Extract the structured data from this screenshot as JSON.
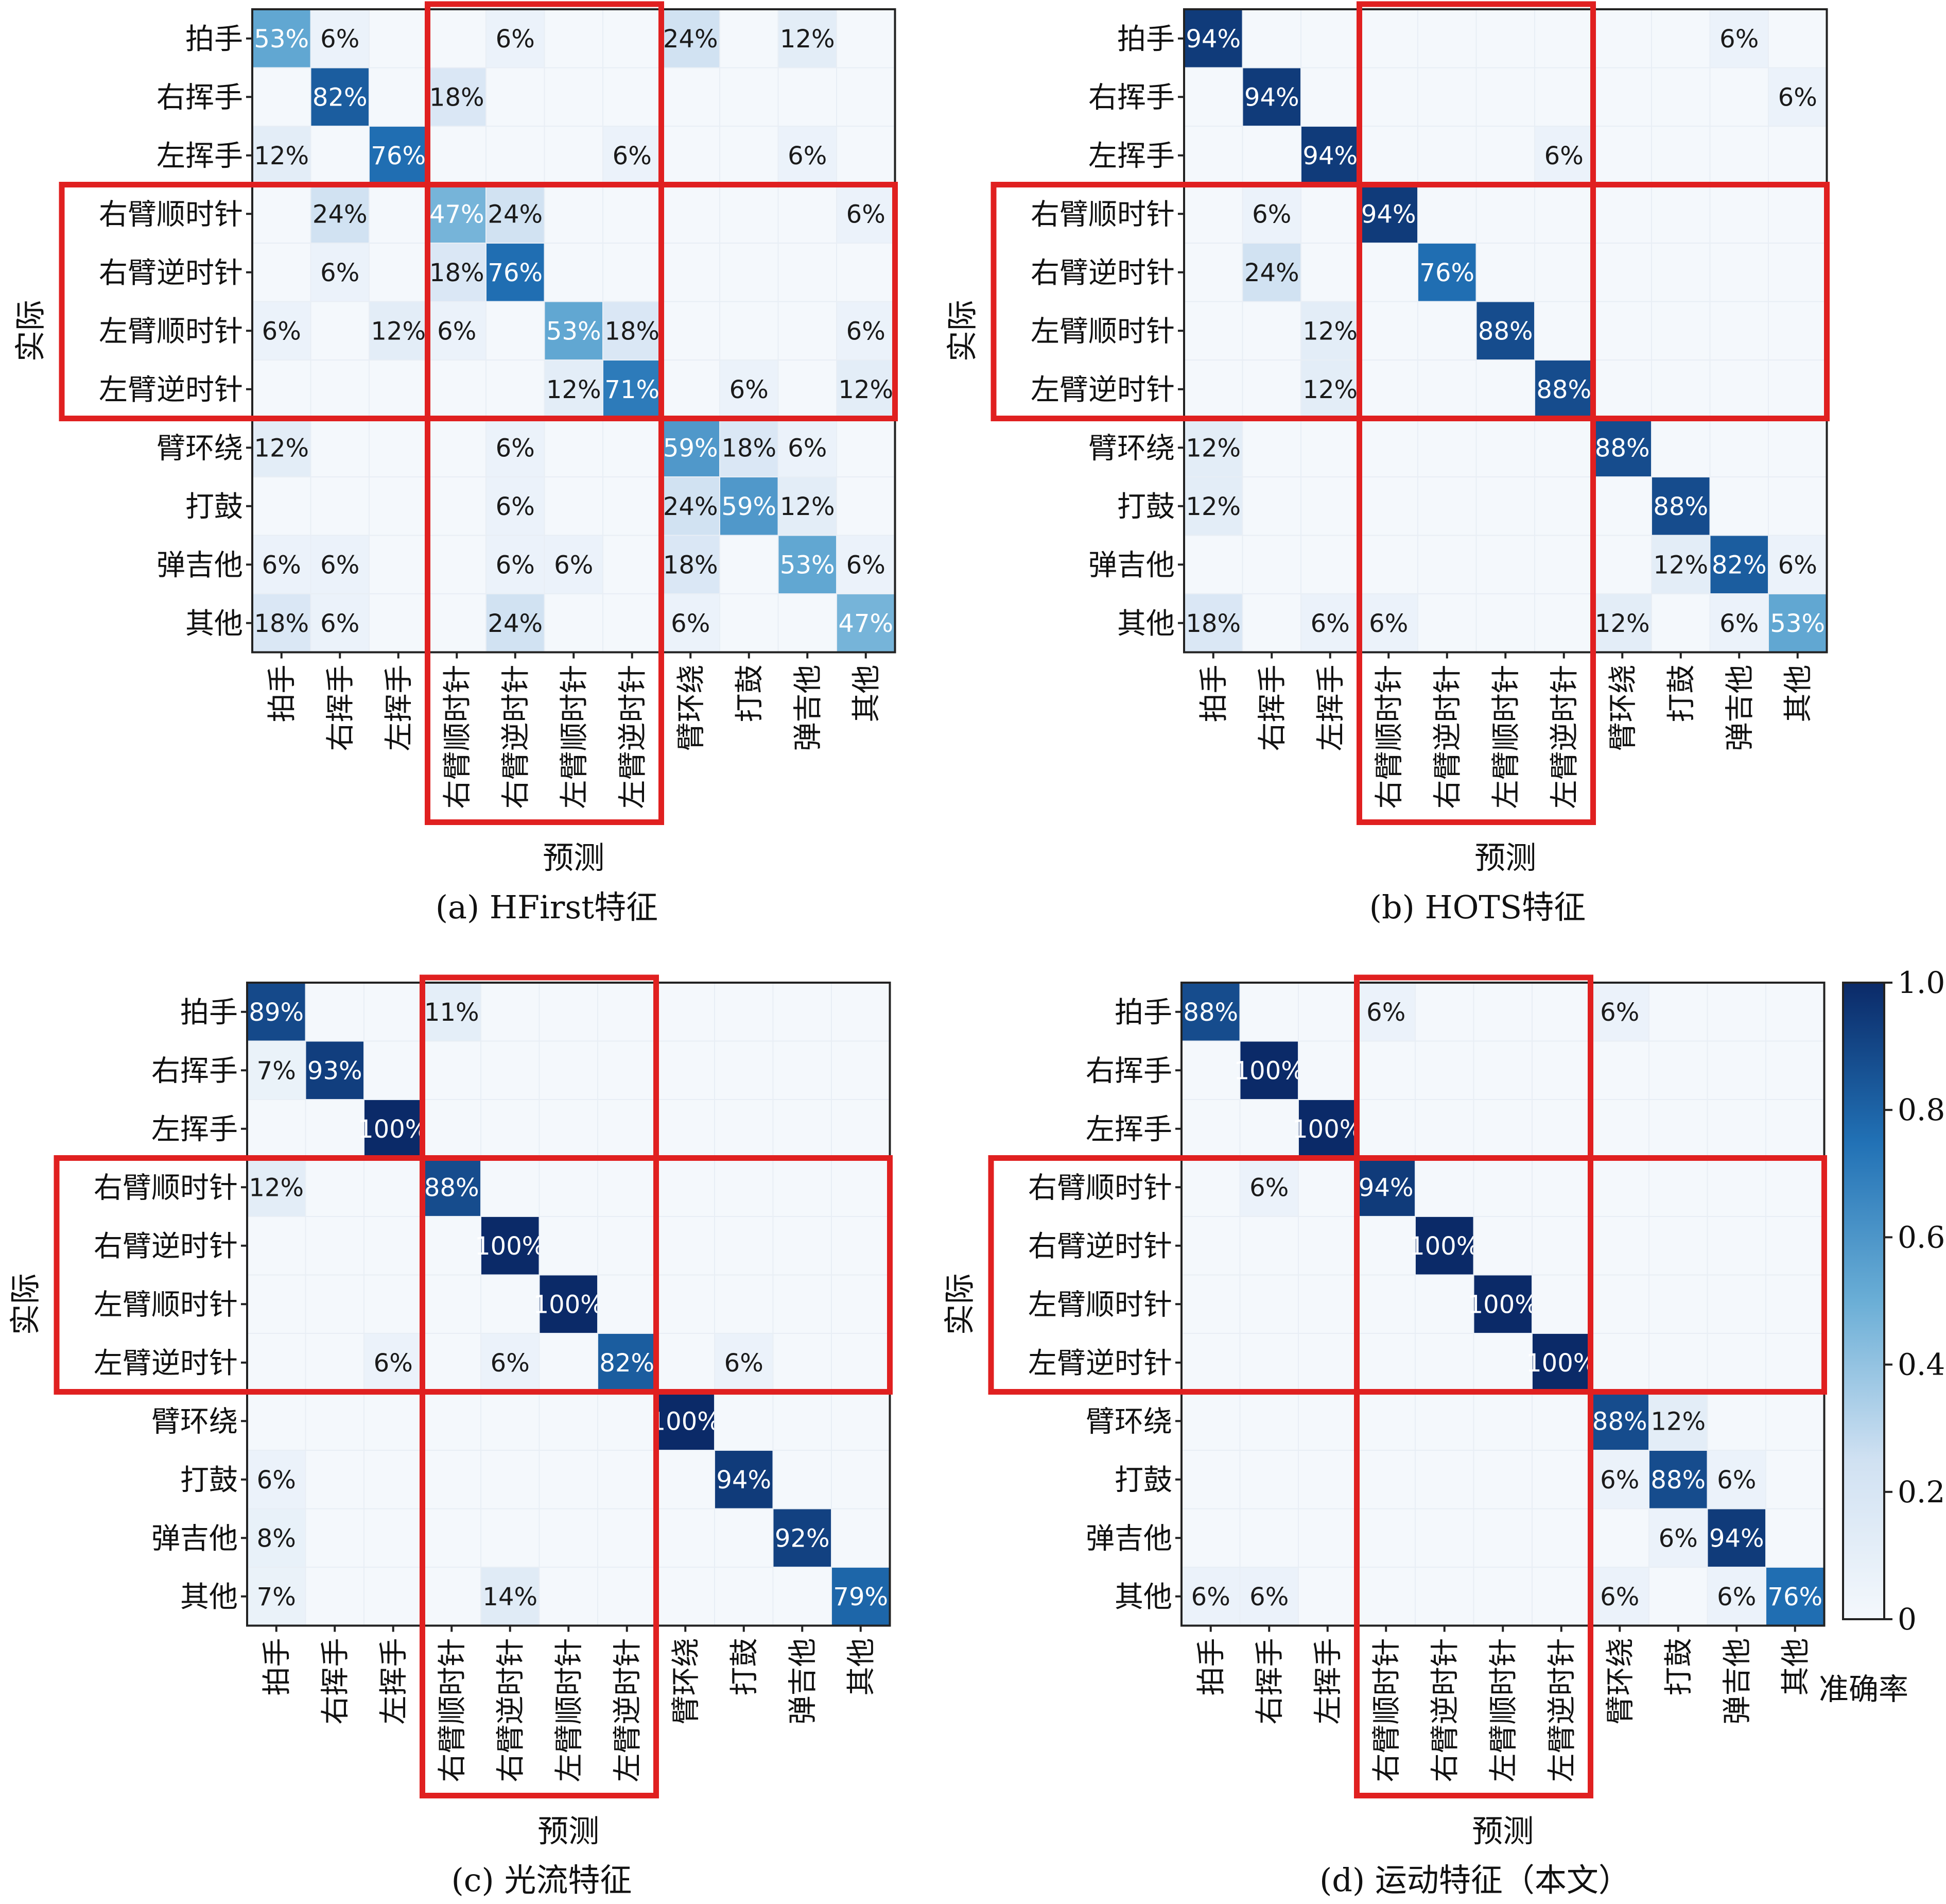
{
  "figure": {
    "colorbar": {
      "label": "准确率",
      "ticks": [
        "1.0",
        "0.8",
        "0.6",
        "0.4",
        "0.2",
        "0"
      ],
      "color_low": "#f4f8fc",
      "color_high": "#0b2a68"
    },
    "highlight_color": "#e02020"
  },
  "chart_data": [
    {
      "type": "heatmap",
      "caption": "(a) HFirst特征",
      "xlabel": "预测",
      "ylabel": "实际",
      "labels": [
        "拍手",
        "右挥手",
        "左挥手",
        "右臂顺时针",
        "右臂逆时针",
        "左臂顺时针",
        "左臂逆时针",
        "臂环绕",
        "打鼓",
        "弹吉他",
        "其他"
      ],
      "values": [
        [
          53,
          6,
          0,
          0,
          6,
          0,
          0,
          24,
          0,
          12,
          0
        ],
        [
          0,
          82,
          0,
          18,
          0,
          0,
          0,
          0,
          0,
          0,
          0
        ],
        [
          12,
          0,
          76,
          0,
          0,
          0,
          6,
          0,
          0,
          6,
          0
        ],
        [
          0,
          24,
          0,
          47,
          24,
          0,
          0,
          0,
          0,
          0,
          6
        ],
        [
          0,
          6,
          0,
          18,
          76,
          0,
          0,
          0,
          0,
          0,
          0
        ],
        [
          6,
          0,
          12,
          6,
          0,
          53,
          18,
          0,
          0,
          0,
          6
        ],
        [
          0,
          0,
          0,
          0,
          0,
          12,
          71,
          0,
          6,
          0,
          12
        ],
        [
          12,
          0,
          0,
          0,
          6,
          0,
          0,
          59,
          18,
          6,
          0
        ],
        [
          0,
          0,
          0,
          0,
          6,
          0,
          0,
          24,
          59,
          12,
          0
        ],
        [
          6,
          6,
          0,
          0,
          6,
          6,
          0,
          18,
          0,
          53,
          6
        ],
        [
          18,
          6,
          0,
          0,
          24,
          0,
          0,
          6,
          0,
          0,
          47
        ]
      ]
    },
    {
      "type": "heatmap",
      "caption": "(b) HOTS特征",
      "xlabel": "预测",
      "ylabel": "实际",
      "labels": [
        "拍手",
        "右挥手",
        "左挥手",
        "右臂顺时针",
        "右臂逆时针",
        "左臂顺时针",
        "左臂逆时针",
        "臂环绕",
        "打鼓",
        "弹吉他",
        "其他"
      ],
      "values": [
        [
          94,
          0,
          0,
          0,
          0,
          0,
          0,
          0,
          0,
          6,
          0
        ],
        [
          0,
          94,
          0,
          0,
          0,
          0,
          0,
          0,
          0,
          0,
          6
        ],
        [
          0,
          0,
          94,
          0,
          0,
          0,
          6,
          0,
          0,
          0,
          0
        ],
        [
          0,
          6,
          0,
          94,
          0,
          0,
          0,
          0,
          0,
          0,
          0
        ],
        [
          0,
          24,
          0,
          0,
          76,
          0,
          0,
          0,
          0,
          0,
          0
        ],
        [
          0,
          0,
          12,
          0,
          0,
          88,
          0,
          0,
          0,
          0,
          0
        ],
        [
          0,
          0,
          12,
          0,
          0,
          0,
          88,
          0,
          0,
          0,
          0
        ],
        [
          12,
          0,
          0,
          0,
          0,
          0,
          0,
          88,
          0,
          0,
          0
        ],
        [
          12,
          0,
          0,
          0,
          0,
          0,
          0,
          0,
          88,
          0,
          0
        ],
        [
          0,
          0,
          0,
          0,
          0,
          0,
          0,
          0,
          12,
          82,
          6
        ],
        [
          18,
          0,
          6,
          6,
          0,
          0,
          0,
          12,
          0,
          6,
          53
        ]
      ]
    },
    {
      "type": "heatmap",
      "caption": "(c) 光流特征",
      "xlabel": "预测",
      "ylabel": "实际",
      "labels": [
        "拍手",
        "右挥手",
        "左挥手",
        "右臂顺时针",
        "右臂逆时针",
        "左臂顺时针",
        "左臂逆时针",
        "臂环绕",
        "打鼓",
        "弹吉他",
        "其他"
      ],
      "values": [
        [
          89,
          0,
          0,
          11,
          0,
          0,
          0,
          0,
          0,
          0,
          0
        ],
        [
          7,
          93,
          0,
          0,
          0,
          0,
          0,
          0,
          0,
          0,
          0
        ],
        [
          0,
          0,
          100,
          0,
          0,
          0,
          0,
          0,
          0,
          0,
          0
        ],
        [
          12,
          0,
          0,
          88,
          0,
          0,
          0,
          0,
          0,
          0,
          0
        ],
        [
          0,
          0,
          0,
          0,
          100,
          0,
          0,
          0,
          0,
          0,
          0
        ],
        [
          0,
          0,
          0,
          0,
          0,
          100,
          0,
          0,
          0,
          0,
          0
        ],
        [
          0,
          0,
          6,
          0,
          6,
          0,
          82,
          0,
          6,
          0,
          0
        ],
        [
          0,
          0,
          0,
          0,
          0,
          0,
          0,
          100,
          0,
          0,
          0
        ],
        [
          6,
          0,
          0,
          0,
          0,
          0,
          0,
          0,
          94,
          0,
          0
        ],
        [
          8,
          0,
          0,
          0,
          0,
          0,
          0,
          0,
          0,
          92,
          0
        ],
        [
          7,
          0,
          0,
          0,
          14,
          0,
          0,
          0,
          0,
          0,
          79
        ]
      ]
    },
    {
      "type": "heatmap",
      "caption": "(d) 运动特征（本文）",
      "xlabel": "预测",
      "ylabel": "实际",
      "labels": [
        "拍手",
        "右挥手",
        "左挥手",
        "右臂顺时针",
        "右臂逆时针",
        "左臂顺时针",
        "左臂逆时针",
        "臂环绕",
        "打鼓",
        "弹吉他",
        "其他"
      ],
      "values": [
        [
          88,
          0,
          0,
          6,
          0,
          0,
          0,
          6,
          0,
          0,
          0
        ],
        [
          0,
          100,
          0,
          0,
          0,
          0,
          0,
          0,
          0,
          0,
          0
        ],
        [
          0,
          0,
          100,
          0,
          0,
          0,
          0,
          0,
          0,
          0,
          0
        ],
        [
          0,
          6,
          0,
          94,
          0,
          0,
          0,
          0,
          0,
          0,
          0
        ],
        [
          0,
          0,
          0,
          0,
          100,
          0,
          0,
          0,
          0,
          0,
          0
        ],
        [
          0,
          0,
          0,
          0,
          0,
          100,
          0,
          0,
          0,
          0,
          0
        ],
        [
          0,
          0,
          0,
          0,
          0,
          0,
          100,
          0,
          0,
          0,
          0
        ],
        [
          0,
          0,
          0,
          0,
          0,
          0,
          0,
          88,
          12,
          0,
          0
        ],
        [
          0,
          0,
          0,
          0,
          0,
          0,
          0,
          6,
          88,
          6,
          0
        ],
        [
          0,
          0,
          0,
          0,
          0,
          0,
          0,
          0,
          6,
          94,
          0
        ],
        [
          6,
          6,
          0,
          0,
          0,
          0,
          0,
          6,
          0,
          6,
          76
        ]
      ]
    }
  ]
}
